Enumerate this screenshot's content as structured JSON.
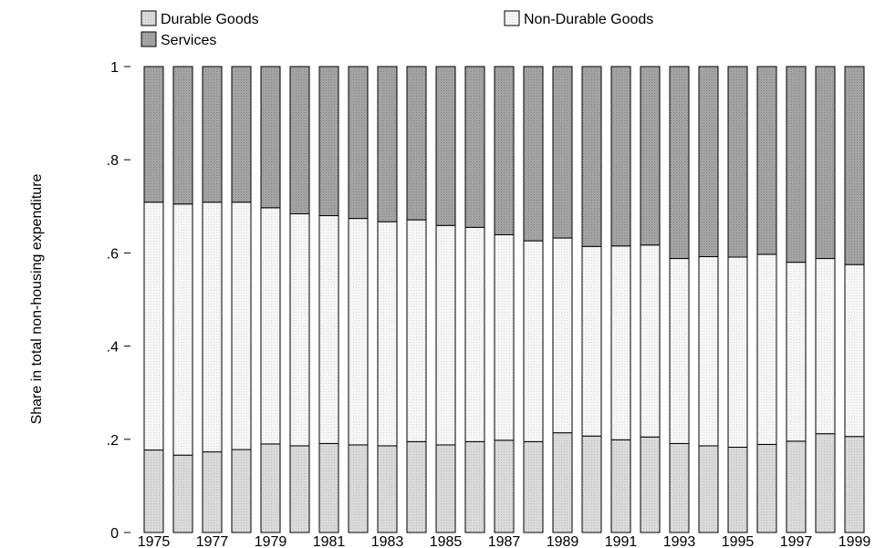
{
  "chart_data": {
    "type": "bar",
    "stacked": true,
    "title": "",
    "xlabel": "",
    "ylabel": "Share in total non-housing expenditure",
    "ylim": [
      0,
      1
    ],
    "yticks": [
      {
        "value": 0,
        "label": "0"
      },
      {
        "value": 0.2,
        "label": ".2"
      },
      {
        "value": 0.4,
        "label": ".4"
      },
      {
        "value": 0.6,
        "label": ".6"
      },
      {
        "value": 0.8,
        "label": ".8"
      },
      {
        "value": 1,
        "label": "1"
      }
    ],
    "grid": false,
    "legend_position": "top",
    "categories": [
      "1975",
      "1976",
      "1977",
      "1978",
      "1979",
      "1980",
      "1981",
      "1982",
      "1983",
      "1984",
      "1985",
      "1986",
      "1987",
      "1988",
      "1989",
      "1990",
      "1991",
      "1992",
      "1993",
      "1994",
      "1995",
      "1996",
      "1997",
      "1998",
      "1999"
    ],
    "xtick_labels": [
      "1975",
      "1977",
      "1979",
      "1981",
      "1983",
      "1985",
      "1987",
      "1989",
      "1991",
      "1993",
      "1995",
      "1997",
      "1999"
    ],
    "series": [
      {
        "name": "Durable Goods",
        "color": "#d9d9d9",
        "values": [
          0.177,
          0.166,
          0.173,
          0.178,
          0.19,
          0.186,
          0.191,
          0.188,
          0.186,
          0.195,
          0.188,
          0.195,
          0.198,
          0.195,
          0.214,
          0.207,
          0.199,
          0.205,
          0.191,
          0.186,
          0.183,
          0.189,
          0.196,
          0.212,
          0.206
        ]
      },
      {
        "name": "Non-Durable Goods",
        "color": "#f7f7f7",
        "values": [
          0.532,
          0.539,
          0.536,
          0.531,
          0.507,
          0.498,
          0.489,
          0.486,
          0.481,
          0.476,
          0.471,
          0.46,
          0.441,
          0.431,
          0.418,
          0.407,
          0.416,
          0.412,
          0.397,
          0.406,
          0.408,
          0.408,
          0.384,
          0.376,
          0.369
        ]
      },
      {
        "name": "Services",
        "color": "#a6a6a6",
        "values": [
          0.291,
          0.295,
          0.291,
          0.291,
          0.303,
          0.316,
          0.32,
          0.326,
          0.333,
          0.329,
          0.341,
          0.345,
          0.361,
          0.374,
          0.368,
          0.386,
          0.385,
          0.383,
          0.412,
          0.408,
          0.409,
          0.403,
          0.42,
          0.412,
          0.425
        ]
      }
    ]
  }
}
